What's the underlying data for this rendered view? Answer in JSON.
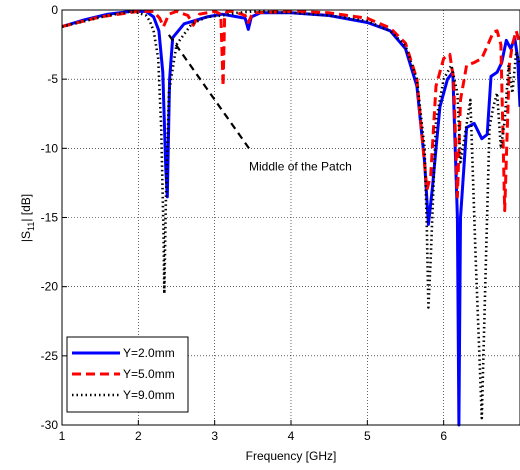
{
  "chart_data": {
    "type": "line",
    "xlabel": "Frequency [GHz]",
    "ylabel_main": "|S",
    "ylabel_sub": "11",
    "ylabel_tail": "| [dB]",
    "xlim": [
      1,
      7
    ],
    "ylim": [
      -30,
      0
    ],
    "xticks": [
      1,
      2,
      3,
      4,
      5,
      6
    ],
    "yticks": [
      0,
      -5,
      -10,
      -15,
      -20,
      -25,
      -30
    ],
    "grid": true,
    "legend_position": "bottom-left",
    "annotation": {
      "text": "Middle of the Patch",
      "points_to": [
        2.4,
        -1.8
      ]
    },
    "series": [
      {
        "name": "Y=2.0mm",
        "color": "#0000ff",
        "style": "solid",
        "x": [
          1.0,
          1.3,
          1.6,
          1.9,
          2.1,
          2.2,
          2.27,
          2.32,
          2.36,
          2.38,
          2.41,
          2.45,
          2.6,
          2.9,
          3.1,
          3.3,
          3.4,
          3.44,
          3.48,
          3.6,
          4.0,
          4.5,
          5.0,
          5.3,
          5.5,
          5.65,
          5.75,
          5.8,
          5.85,
          5.95,
          6.05,
          6.12,
          6.18,
          6.2,
          6.22,
          6.3,
          6.4,
          6.5,
          6.57,
          6.62,
          6.7,
          6.76,
          6.82,
          6.88,
          6.93,
          6.97,
          7.0
        ],
        "y": [
          -1.2,
          -0.7,
          -0.3,
          -0.1,
          -0.1,
          -0.5,
          -1.5,
          -4.5,
          -11.5,
          -13.5,
          -5.0,
          -2.0,
          -1.0,
          -0.5,
          -0.3,
          -0.5,
          -0.6,
          -1.4,
          -0.5,
          -0.2,
          -0.2,
          -0.4,
          -0.9,
          -1.5,
          -2.8,
          -5.5,
          -11.0,
          -15.5,
          -13.0,
          -7.0,
          -5.0,
          -4.5,
          -15.0,
          -30.0,
          -15.0,
          -8.5,
          -8.2,
          -9.3,
          -9.0,
          -4.8,
          -4.5,
          -3.8,
          -2.2,
          -2.8,
          -2.0,
          -3.5,
          -7.0
        ]
      },
      {
        "name": "Y=5.0mm",
        "color": "#ff0000",
        "style": "dashed",
        "x": [
          1.0,
          1.5,
          2.0,
          2.2,
          2.28,
          2.33,
          2.4,
          2.5,
          2.65,
          2.72,
          2.8,
          3.0,
          3.08,
          3.11,
          3.13,
          3.16,
          3.25,
          3.4,
          3.44,
          3.5,
          4.0,
          4.5,
          5.0,
          5.3,
          5.5,
          5.65,
          5.78,
          5.83,
          5.9,
          6.0,
          6.08,
          6.13,
          6.18,
          6.22,
          6.3,
          6.4,
          6.5,
          6.58,
          6.65,
          6.7,
          6.75,
          6.8,
          6.86,
          6.9,
          6.95,
          7.0
        ],
        "y": [
          -1.2,
          -0.5,
          -0.1,
          -0.1,
          -0.6,
          -1.2,
          -0.3,
          -0.1,
          -0.4,
          -1.1,
          -0.3,
          -0.1,
          -0.3,
          -5.5,
          -0.6,
          -0.1,
          -0.1,
          -0.4,
          -0.9,
          -0.2,
          -0.1,
          -0.2,
          -0.6,
          -1.3,
          -2.4,
          -5.0,
          -13.0,
          -12.0,
          -5.5,
          -3.5,
          -3.2,
          -5.0,
          -13.5,
          -6.5,
          -4.0,
          -3.8,
          -3.5,
          -2.5,
          -1.6,
          -1.5,
          -2.5,
          -14.5,
          -4.0,
          -2.5,
          -1.5,
          -2.5
        ]
      },
      {
        "name": "Y=9.0mm",
        "color": "#000000",
        "style": "dotted",
        "x": [
          1.0,
          1.3,
          1.6,
          1.8,
          1.9,
          2.0,
          2.1,
          2.15,
          2.2,
          2.26,
          2.3,
          2.33,
          2.34,
          2.36,
          2.4,
          2.5,
          2.7,
          2.9,
          3.1,
          3.3,
          3.5,
          4.0,
          4.5,
          5.0,
          5.3,
          5.5,
          5.65,
          5.75,
          5.78,
          5.8,
          5.83,
          5.9,
          6.0,
          6.1,
          6.18,
          6.22,
          6.28,
          6.35,
          6.42,
          6.5,
          6.55,
          6.6,
          6.65,
          6.7,
          6.75,
          6.8,
          6.85,
          6.9,
          6.95,
          7.0
        ],
        "y": [
          -1.2,
          -0.8,
          -0.4,
          -0.2,
          -0.1,
          -0.2,
          -0.4,
          -0.8,
          -1.5,
          -3.5,
          -8.5,
          -16.0,
          -20.5,
          -14.0,
          -6.0,
          -2.5,
          -1.0,
          -0.5,
          -0.4,
          -0.2,
          -0.1,
          -0.2,
          -0.4,
          -0.8,
          -1.5,
          -2.6,
          -5.0,
          -10.0,
          -16.0,
          -21.5,
          -18.0,
          -8.0,
          -5.0,
          -4.0,
          -6.0,
          -11.0,
          -9.0,
          -6.5,
          -18.0,
          -29.5,
          -19.0,
          -8.5,
          -7.0,
          -6.0,
          -10.0,
          -8.0,
          -4.0,
          -6.0,
          -3.0,
          -4.0
        ]
      }
    ]
  }
}
